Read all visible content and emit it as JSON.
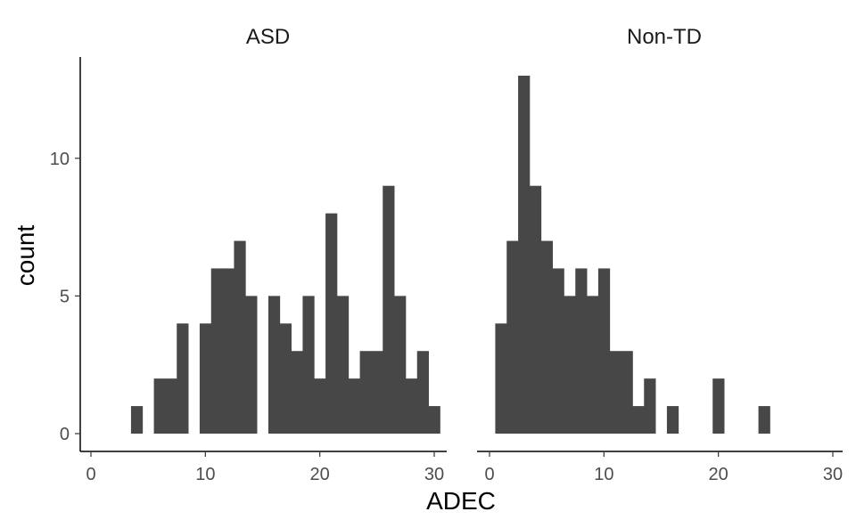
{
  "chart_data": {
    "type": "bar",
    "xlabel": "ADEC",
    "ylabel": "count",
    "xlim": [
      0,
      30
    ],
    "ylim": [
      0,
      13
    ],
    "x_ticks": [
      "0",
      "10",
      "20",
      "30"
    ],
    "y_ticks": [
      "0",
      "5",
      "10"
    ],
    "grid": false,
    "bin_width": 1,
    "fill_color": "#474747",
    "panels": [
      {
        "title": "ASD",
        "bins": [
          {
            "x": 4,
            "count": 1
          },
          {
            "x": 6,
            "count": 2
          },
          {
            "x": 7,
            "count": 2
          },
          {
            "x": 8,
            "count": 4
          },
          {
            "x": 10,
            "count": 4
          },
          {
            "x": 11,
            "count": 6
          },
          {
            "x": 12,
            "count": 6
          },
          {
            "x": 13,
            "count": 7
          },
          {
            "x": 14,
            "count": 5
          },
          {
            "x": 16,
            "count": 5
          },
          {
            "x": 17,
            "count": 4
          },
          {
            "x": 18,
            "count": 3
          },
          {
            "x": 19,
            "count": 5
          },
          {
            "x": 20,
            "count": 2
          },
          {
            "x": 21,
            "count": 8
          },
          {
            "x": 22,
            "count": 5
          },
          {
            "x": 23,
            "count": 2
          },
          {
            "x": 24,
            "count": 3
          },
          {
            "x": 25,
            "count": 3
          },
          {
            "x": 26,
            "count": 9
          },
          {
            "x": 27,
            "count": 5
          },
          {
            "x": 28,
            "count": 2
          },
          {
            "x": 29,
            "count": 3
          },
          {
            "x": 30,
            "count": 1
          }
        ]
      },
      {
        "title": "Non-TD",
        "bins": [
          {
            "x": 1,
            "count": 4
          },
          {
            "x": 2,
            "count": 7
          },
          {
            "x": 3,
            "count": 13
          },
          {
            "x": 4,
            "count": 9
          },
          {
            "x": 5,
            "count": 7
          },
          {
            "x": 6,
            "count": 6
          },
          {
            "x": 7,
            "count": 5
          },
          {
            "x": 8,
            "count": 6
          },
          {
            "x": 9,
            "count": 5
          },
          {
            "x": 10,
            "count": 6
          },
          {
            "x": 11,
            "count": 3
          },
          {
            "x": 12,
            "count": 3
          },
          {
            "x": 13,
            "count": 1
          },
          {
            "x": 14,
            "count": 2
          },
          {
            "x": 16,
            "count": 1
          },
          {
            "x": 20,
            "count": 2
          },
          {
            "x": 24,
            "count": 1
          }
        ]
      }
    ]
  }
}
